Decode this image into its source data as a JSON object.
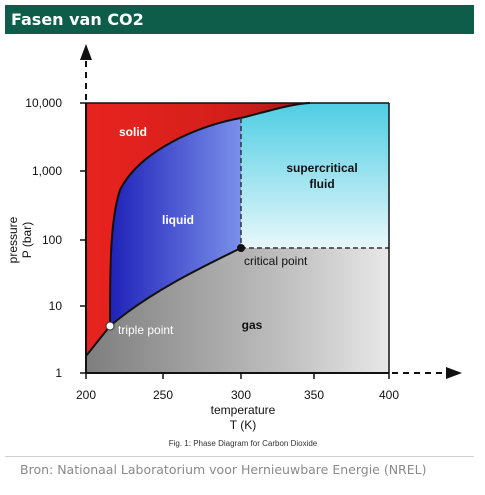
{
  "header": {
    "title": "Fasen van CO2"
  },
  "diagram": {
    "regions": {
      "solid": "solid",
      "liquid": "liquid",
      "supercritical_line1": "supercritical",
      "supercritical_line2": "fluid",
      "gas": "gas"
    },
    "points": {
      "triple": "triple point",
      "critical": "critical point"
    },
    "yaxis": {
      "label_line1": "pressure",
      "label_line2": "P (bar)",
      "ticks": [
        "10,000",
        "1,000",
        "100",
        "10",
        "1"
      ]
    },
    "xaxis": {
      "label_line1": "temperature",
      "label_line2": "T (K)",
      "ticks": [
        "200",
        "250",
        "300",
        "350",
        "400"
      ]
    },
    "caption": "Fig. 1: Phase Diagram for Carbon Dioxide",
    "colors": {
      "solid": "#e8231f",
      "liquid": "#3b3fd6",
      "supercritical": "#6fd7ea",
      "gas": "#9a9a9a"
    }
  },
  "footer": {
    "source": "Bron: Nationaal Laboratorium voor Hernieuwbare Energie (NREL)"
  }
}
